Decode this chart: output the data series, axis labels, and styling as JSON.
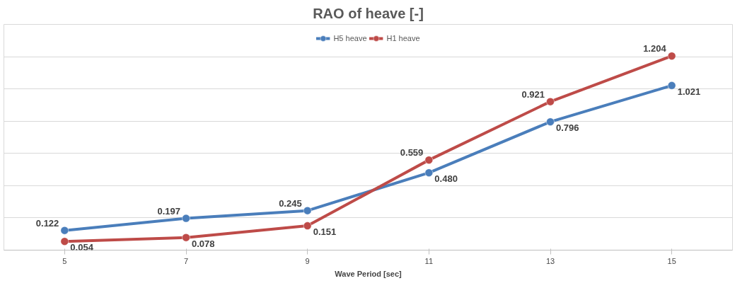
{
  "chart_data": {
    "type": "line",
    "title": "RAO of heave [-]",
    "xlabel": "Wave Period [sec]",
    "categories": [
      "5",
      "7",
      "9",
      "11",
      "13",
      "15"
    ],
    "series": [
      {
        "name": "H5 heave",
        "color": "#4a7ebb",
        "values": [
          0.122,
          0.197,
          0.245,
          0.48,
          0.796,
          1.021
        ],
        "value_labels": [
          "0.122",
          "0.197",
          "0.245",
          "0.480",
          "0.796",
          "1.021"
        ]
      },
      {
        "name": "H1 heave",
        "color": "#be4b48",
        "values": [
          0.054,
          0.078,
          0.151,
          0.559,
          0.921,
          1.204
        ],
        "value_labels": [
          "0.054",
          "0.078",
          "0.151",
          "0.559",
          "0.921",
          "1.204"
        ]
      }
    ],
    "ylim": [
      0,
      1.4
    ],
    "yticks": [
      {
        "value": 0,
        "label": null
      },
      {
        "value": 0.2,
        "label": null
      },
      {
        "value": 0.4,
        "label": null
      },
      {
        "value": 0.6,
        "label": null
      },
      {
        "value": 0.8,
        "label": null
      },
      {
        "value": 1.0,
        "label": null
      },
      {
        "value": 1.2,
        "label": null
      },
      {
        "value": 1.4,
        "label": null
      }
    ],
    "tick_labels": "x",
    "grid": "y",
    "legend": "top",
    "marker": "circle",
    "line_style": "solid"
  }
}
